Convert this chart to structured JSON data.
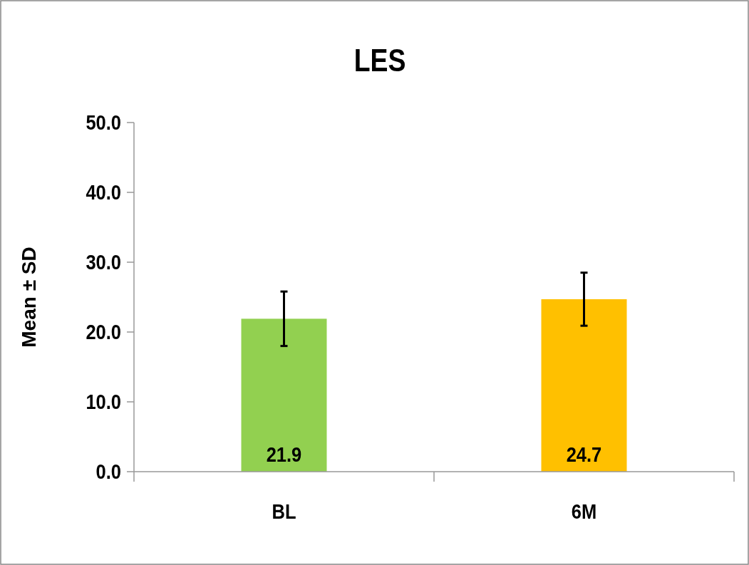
{
  "chart_data": {
    "type": "bar",
    "title": "LES",
    "ylabel": "Mean ± SD",
    "categories": [
      "BL",
      "6M"
    ],
    "values": [
      21.9,
      24.7
    ],
    "colors": [
      "#92d050",
      "#ffc000"
    ],
    "errors": [
      3.9,
      3.8
    ],
    "data_labels": true,
    "ylim": [
      0,
      50
    ],
    "yticks": [
      {
        "value": 0,
        "label": "0.0"
      },
      {
        "value": 10,
        "label": "10.0"
      },
      {
        "value": 20,
        "label": "20.0"
      },
      {
        "value": 30,
        "label": "30.0"
      },
      {
        "value": 40,
        "label": "40.0"
      },
      {
        "value": 50,
        "label": "50.0"
      }
    ],
    "grid": false
  }
}
